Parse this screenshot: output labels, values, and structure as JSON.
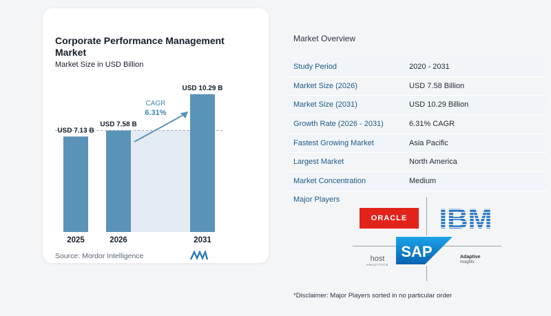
{
  "chart_title": "Corporate Performance Management Market",
  "chart_subtitle": "Market Size in USD Billion",
  "source": "Source:  Mordor Intelligence",
  "colors": {
    "bar": "#5b93b8",
    "cagr_text": "#3f86b5",
    "arrow": "#5b93b8",
    "shade": "#e3ebf3",
    "label_accent": "#1f5a88"
  },
  "chart_data": {
    "type": "bar",
    "categories": [
      "2025",
      "2026",
      "2031"
    ],
    "values": [
      7.13,
      7.58,
      10.29
    ],
    "value_labels": [
      "USD 7.13 B",
      "USD 7.58 B",
      "USD 10.29 B"
    ],
    "ylim": [
      0,
      11
    ],
    "cagr_label": "CAGR",
    "cagr_value": "6.31%",
    "grid": false
  },
  "overview": {
    "title": "Market Overview",
    "rows": [
      {
        "label": "Study Period",
        "value": "2020 - 2031"
      },
      {
        "label": "Market Size (2026)",
        "value": "USD 7.58 Billion"
      },
      {
        "label": "Market Size (2031)",
        "value": "USD 10.29 Billion"
      },
      {
        "label": "Growth Rate (2026 - 2031)",
        "value": "6.31% CAGR"
      },
      {
        "label": "Fastest Growing Market",
        "value": "Asia Pacific"
      },
      {
        "label": "Largest Market",
        "value": "North America"
      },
      {
        "label": "Market Concentration",
        "value": "Medium"
      }
    ]
  },
  "players": {
    "title": "Major Players",
    "oracle": "ORACLE",
    "ibm": "IBM",
    "sap": "SAP",
    "host": "host",
    "host_sub": "ANALYTICS",
    "adaptive": "Adaptive",
    "adaptive_sub": "Insights"
  },
  "disclaimer": "*Disclaimer: Major Players sorted in no particular order"
}
